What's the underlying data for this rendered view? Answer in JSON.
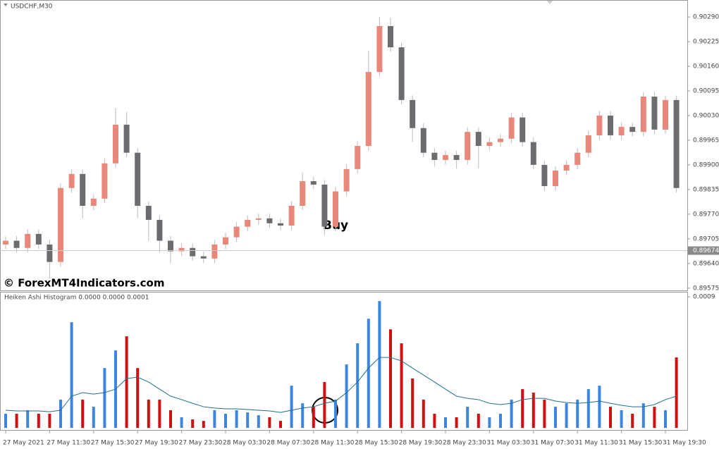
{
  "chart_data": [
    {
      "type": "candlestick",
      "title": "USDCHF,M30",
      "annotation": "Buy",
      "watermark": "© ForexMT4Indicators.com",
      "up_color": "#e8877a",
      "down_color": "#6b6b70",
      "current_price": 0.89674,
      "ylim": [
        0.89569,
        0.90331
      ],
      "yticks": [
        {
          "value": 0.9029,
          "label": "0.90290"
        },
        0.90225,
        {
          "value": 0.9016,
          "label": "0.90160"
        },
        0.90095,
        {
          "value": 0.9003,
          "label": "0.90030"
        },
        0.89965,
        {
          "value": 0.899,
          "label": "0.89900"
        },
        0.89835,
        {
          "value": 0.8977,
          "label": "0.89770"
        },
        0.89705,
        {
          "value": 0.8964,
          "label": "0.89640"
        },
        0.89575
      ],
      "categories": [
        "27 May 2021",
        null,
        null,
        null,
        "27 May 11:30",
        null,
        null,
        null,
        "27 May 15:30",
        null,
        null,
        null,
        "27 May 19:30",
        null,
        null,
        null,
        "27 May 23:30",
        null,
        null,
        null,
        "28 May 03:30",
        null,
        null,
        null,
        "28 May 07:30",
        null,
        null,
        null,
        "28 May 11:30",
        null,
        null,
        null,
        "28 May 15:30",
        null,
        null,
        null,
        "28 May 19:30",
        null,
        null,
        null,
        "28 May 23:30",
        null,
        null,
        null,
        "31 May 03:30",
        null,
        null,
        null,
        "31 May 07:30",
        null,
        null,
        null,
        "31 May 11:30",
        null,
        null,
        null,
        "31 May 15:30",
        null,
        null,
        null,
        "31 May 19:30",
        null
      ],
      "open": [
        0.8969,
        0.897,
        0.89681,
        0.89718,
        0.8969,
        0.89644,
        0.89839,
        0.89876,
        0.89792,
        0.89811,
        0.89904,
        0.90006,
        0.89932,
        0.89792,
        0.89755,
        0.897,
        0.89672,
        0.89681,
        0.89659,
        0.89653,
        0.8969,
        0.89709,
        0.89737,
        0.89755,
        0.89759,
        0.89746,
        0.8974,
        0.89792,
        0.89857,
        0.89848,
        0.89737,
        0.8983,
        0.89889,
        0.8995,
        0.90145,
        0.90266,
        0.9021,
        0.90071,
        0.89997,
        0.89932,
        0.89913,
        0.89926,
        0.89913,
        0.89987,
        0.8995,
        0.8996,
        0.89969,
        0.90025,
        0.8996,
        0.899,
        0.89844,
        0.89885,
        0.899,
        0.89932,
        0.89978,
        0.9003,
        0.89978,
        0.9,
        0.89987,
        0.9008,
        0.89993,
        0.90071
      ],
      "high": [
        0.89712,
        0.89712,
        0.8973,
        0.8973,
        0.89702,
        0.89851,
        0.89888,
        0.89888,
        0.89823,
        0.89916,
        0.9005,
        0.9004,
        0.89944,
        0.89804,
        0.89767,
        0.89712,
        0.89693,
        0.89693,
        0.89671,
        0.89702,
        0.89721,
        0.89749,
        0.89767,
        0.89771,
        0.89771,
        0.89758,
        0.89804,
        0.8988,
        0.89869,
        0.8986,
        0.89842,
        0.89901,
        0.89962,
        0.902,
        0.9029,
        0.90288,
        0.90222,
        0.90083,
        0.90009,
        0.89944,
        0.89938,
        0.89938,
        0.89999,
        0.89999,
        0.89972,
        0.89981,
        0.90037,
        0.90037,
        0.89972,
        0.89912,
        0.89897,
        0.89912,
        0.89944,
        0.8999,
        0.90042,
        0.90042,
        0.90012,
        0.90012,
        0.90092,
        0.90092,
        0.90083,
        0.90083
      ],
      "low": [
        0.89678,
        0.89669,
        0.89669,
        0.89678,
        0.896,
        0.89632,
        0.89827,
        0.8976,
        0.8978,
        0.89799,
        0.89892,
        0.8992,
        0.8976,
        0.897,
        0.8967,
        0.8964,
        0.8966,
        0.89647,
        0.89641,
        0.89641,
        0.89678,
        0.89697,
        0.89725,
        0.89743,
        0.89734,
        0.89728,
        0.89728,
        0.8978,
        0.89836,
        0.89715,
        0.89725,
        0.89818,
        0.89877,
        0.89938,
        0.90133,
        0.90198,
        0.90059,
        0.8996,
        0.8992,
        0.89895,
        0.89901,
        0.8989,
        0.89901,
        0.8989,
        0.89938,
        0.89948,
        0.89957,
        0.89948,
        0.89888,
        0.89832,
        0.89832,
        0.89873,
        0.89888,
        0.8992,
        0.89966,
        0.89966,
        0.89966,
        0.89975,
        0.89975,
        0.89981,
        0.89981,
        0.89827
      ],
      "close": [
        0.897,
        0.89681,
        0.89718,
        0.8969,
        0.89644,
        0.89839,
        0.89876,
        0.89792,
        0.89811,
        0.89904,
        0.90006,
        0.89932,
        0.89792,
        0.89755,
        0.897,
        0.89672,
        0.89681,
        0.89659,
        0.89653,
        0.8969,
        0.89709,
        0.89737,
        0.89755,
        0.89759,
        0.89746,
        0.8974,
        0.89792,
        0.89857,
        0.89848,
        0.89737,
        0.8983,
        0.89889,
        0.8995,
        0.90145,
        0.90266,
        0.9021,
        0.90071,
        0.89997,
        0.89932,
        0.89913,
        0.89926,
        0.89913,
        0.89987,
        0.8995,
        0.8996,
        0.89969,
        0.90025,
        0.8996,
        0.899,
        0.89844,
        0.89885,
        0.899,
        0.89932,
        0.89978,
        0.9003,
        0.89978,
        0.9,
        0.89987,
        0.9008,
        0.89993,
        0.90071,
        0.89839
      ]
    },
    {
      "type": "bar",
      "title": "Heiken Ashi Histogram 0.0000 0.0000 0.0001",
      "ylim": [
        0,
        0.00093
      ],
      "yticks": [
        0.0009
      ],
      "series": [
        {
          "color": "#3d85e0",
          "values": [
            9.7e-05,
            null,
            0.000121,
            null,
            null,
            0.000194,
            0.000726,
            null,
            0.000145,
            0.000411,
            0.000532,
            null,
            null,
            null,
            null,
            null,
            7.3e-05,
            null,
            null,
            0.000121,
            9.7e-05,
            0.000121,
            0.000106,
            8.7e-05,
            null,
            null,
            0.00029,
            0.000169,
            null,
            null,
            0.000194,
            0.000436,
            0.000581,
            0.00075,
            0.000871,
            null,
            null,
            null,
            null,
            null,
            7.3e-05,
            null,
            0.000145,
            null,
            7.3e-05,
            9.7e-05,
            0.000194,
            null,
            null,
            null,
            0.000145,
            0.000169,
            0.000194,
            0.000266,
            0.00029,
            null,
            0.000121,
            null,
            0.000169,
            null,
            0.000121,
            null
          ]
        },
        {
          "color": "#d01010",
          "values": [
            null,
            9.7e-05,
            null,
            9.7e-05,
            9.7e-05,
            null,
            null,
            0.000194,
            null,
            null,
            null,
            0.000629,
            0.000411,
            0.000194,
            0.000194,
            0.000121,
            null,
            5.8e-05,
            4.8e-05,
            null,
            null,
            null,
            null,
            null,
            7.3e-05,
            4.8e-05,
            null,
            null,
            0.000145,
            0.000315,
            null,
            null,
            null,
            null,
            null,
            0.000677,
            0.000581,
            0.000339,
            0.000194,
            9.7e-05,
            null,
            7.3e-05,
            null,
            9.7e-05,
            null,
            null,
            null,
            0.000266,
            0.000242,
            0.000194,
            null,
            null,
            null,
            null,
            null,
            0.000145,
            null,
            9.7e-05,
            null,
            0.000145,
            null,
            0.000484
          ]
        },
        {
          "type": "line",
          "color": "#1f6f8b",
          "values": [
            0.000121,
            0.000116,
            0.000116,
            0.000116,
            0.000111,
            0.000121,
            0.000218,
            0.000242,
            0.000232,
            0.000242,
            0.000266,
            0.000339,
            0.000348,
            0.000315,
            0.000266,
            0.000218,
            0.000194,
            0.000169,
            0.000145,
            0.000136,
            0.000131,
            0.000131,
            0.000126,
            0.000121,
            0.000116,
            0.000106,
            0.000121,
            0.000136,
            0.000145,
            0.000169,
            0.000184,
            0.000242,
            0.000315,
            0.000411,
            0.000484,
            0.000484,
            0.00046,
            0.000411,
            0.000363,
            0.000315,
            0.000266,
            0.000218,
            0.000203,
            0.000194,
            0.000169,
            0.00016,
            0.000169,
            0.000194,
            0.000203,
            0.000203,
            0.000184,
            0.000174,
            0.000169,
            0.000174,
            0.000184,
            0.000169,
            0.000155,
            0.000145,
            0.000145,
            0.00016,
            0.000194,
            0.000218
          ]
        }
      ]
    }
  ]
}
